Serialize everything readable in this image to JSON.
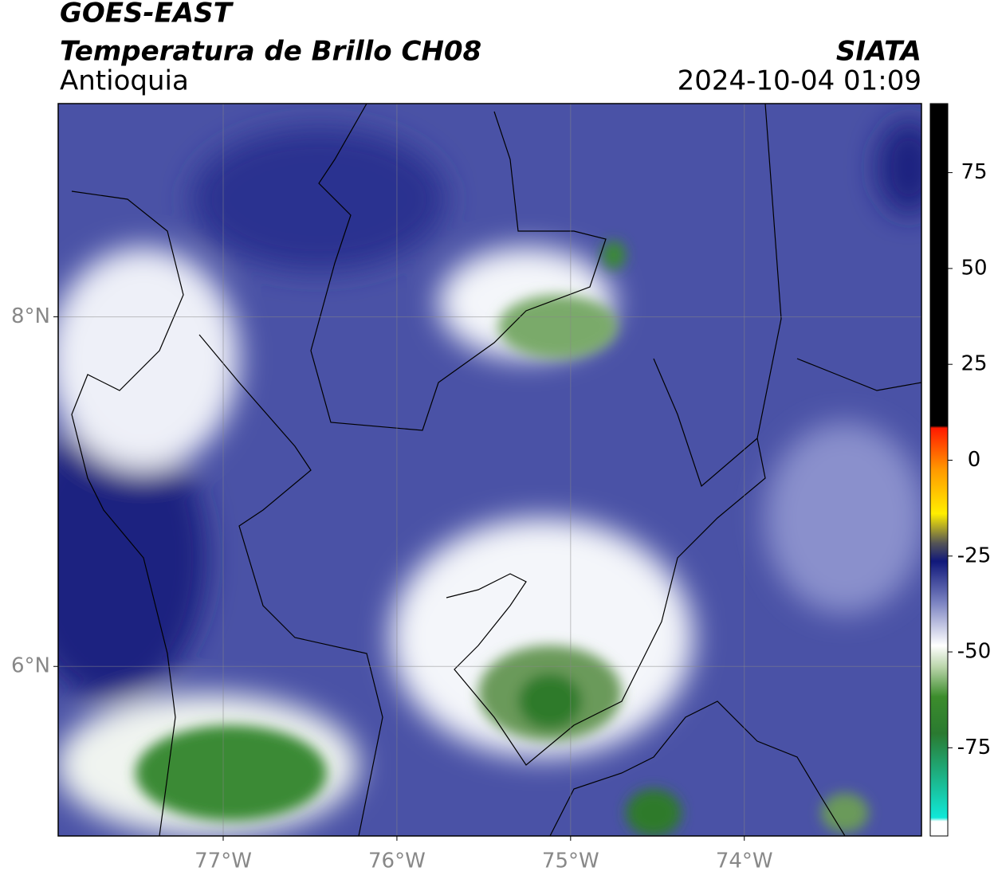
{
  "header": {
    "title": "GOES-EAST",
    "subtitle": "Temperatura de Brillo CH08",
    "region": "Antioquia",
    "source": "SIATA",
    "datetime": "2024-10-04 01:09"
  },
  "map": {
    "xlim": [
      -77.95,
      -72.98
    ],
    "ylim": [
      5.03,
      9.22
    ],
    "xticks": [
      {
        "value": -77,
        "label": "77°W"
      },
      {
        "value": -76,
        "label": "76°W"
      },
      {
        "value": -75,
        "label": "75°W"
      },
      {
        "value": -74,
        "label": "74°W"
      }
    ],
    "yticks": [
      {
        "value": 6,
        "label": "6°N"
      },
      {
        "value": 8,
        "label": "8°N"
      }
    ],
    "grid": true
  },
  "colorbar": {
    "lim": [
      -98,
      93
    ],
    "ticks": [
      75,
      50,
      25,
      0,
      -25,
      -50,
      -75
    ]
  }
}
